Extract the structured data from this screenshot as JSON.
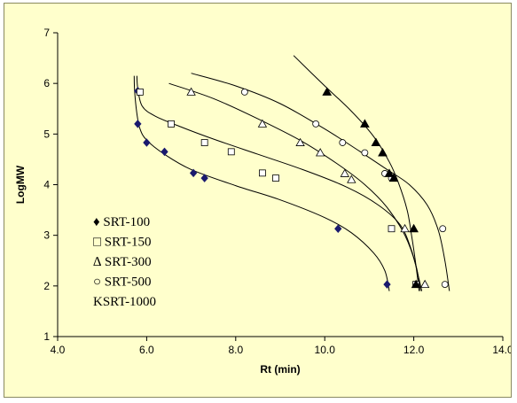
{
  "colors": {
    "page_background": "#ffffcc",
    "frame_border": "#8a8a60",
    "axis": "#000000",
    "curve": "#000000",
    "srt100_marker": "#1a1a6e"
  },
  "chart_data": {
    "type": "scatter",
    "xlabel": "Rt (min)",
    "ylabel": "LogMW",
    "xlim": [
      4.0,
      14.0
    ],
    "ylim": [
      1,
      7
    ],
    "xticks": [
      "4.0",
      "6.0",
      "8.0",
      "10.0",
      "12.0",
      "14.0"
    ],
    "yticks": [
      "1",
      "2",
      "3",
      "4",
      "5",
      "6",
      "7"
    ],
    "grid": false,
    "legend_position": "bottom-left",
    "series": [
      {
        "name": "SRT-100",
        "legend_label": "♦ SRT-100",
        "marker": "filled-diamond",
        "points": [
          [
            5.8,
            5.85
          ],
          [
            5.8,
            5.2
          ],
          [
            6.0,
            4.83
          ],
          [
            6.4,
            4.65
          ],
          [
            7.05,
            4.23
          ],
          [
            7.3,
            4.13
          ],
          [
            10.3,
            3.13
          ],
          [
            11.4,
            2.03
          ]
        ],
        "fit_curve": [
          [
            5.72,
            6.15
          ],
          [
            5.73,
            5.85
          ],
          [
            5.78,
            5.4
          ],
          [
            5.85,
            5.1
          ],
          [
            6.0,
            4.88
          ],
          [
            6.4,
            4.6
          ],
          [
            7.0,
            4.3
          ],
          [
            8.0,
            3.98
          ],
          [
            9.0,
            3.7
          ],
          [
            10.0,
            3.35
          ],
          [
            10.6,
            3.05
          ],
          [
            11.1,
            2.65
          ],
          [
            11.35,
            2.3
          ],
          [
            11.45,
            1.9
          ]
        ]
      },
      {
        "name": "SRT-150",
        "legend_label": "□ SRT-150",
        "marker": "open-square",
        "points": [
          [
            5.85,
            5.83
          ],
          [
            6.55,
            5.2
          ],
          [
            7.3,
            4.83
          ],
          [
            7.9,
            4.65
          ],
          [
            8.6,
            4.23
          ],
          [
            8.9,
            4.13
          ],
          [
            11.5,
            3.13
          ],
          [
            12.05,
            2.03
          ]
        ],
        "fit_curve": [
          [
            5.78,
            6.15
          ],
          [
            5.8,
            5.9
          ],
          [
            5.9,
            5.55
          ],
          [
            6.2,
            5.35
          ],
          [
            6.8,
            5.13
          ],
          [
            7.5,
            4.9
          ],
          [
            8.5,
            4.6
          ],
          [
            9.5,
            4.3
          ],
          [
            10.5,
            3.95
          ],
          [
            11.2,
            3.6
          ],
          [
            11.7,
            3.2
          ],
          [
            11.95,
            2.7
          ],
          [
            12.1,
            2.2
          ],
          [
            12.18,
            1.9
          ]
        ]
      },
      {
        "name": "SRT-300",
        "legend_label": "∆ SRT-300",
        "marker": "open-triangle",
        "points": [
          [
            7.0,
            5.83
          ],
          [
            8.6,
            5.2
          ],
          [
            9.45,
            4.83
          ],
          [
            9.9,
            4.63
          ],
          [
            10.45,
            4.22
          ],
          [
            10.6,
            4.1
          ],
          [
            11.8,
            3.13
          ],
          [
            12.25,
            2.03
          ]
        ],
        "fit_curve": [
          [
            6.5,
            6.0
          ],
          [
            7.5,
            5.7
          ],
          [
            8.5,
            5.3
          ],
          [
            9.5,
            4.85
          ],
          [
            10.3,
            4.4
          ],
          [
            10.9,
            4.0
          ],
          [
            11.4,
            3.55
          ],
          [
            11.8,
            3.0
          ],
          [
            12.05,
            2.4
          ],
          [
            12.15,
            1.9
          ]
        ]
      },
      {
        "name": "SRT-500",
        "legend_label": "○ SRT-500",
        "marker": "open-circle",
        "points": [
          [
            8.2,
            5.83
          ],
          [
            9.8,
            5.2
          ],
          [
            10.4,
            4.83
          ],
          [
            10.9,
            4.63
          ],
          [
            11.35,
            4.22
          ],
          [
            11.5,
            4.13
          ],
          [
            12.65,
            3.13
          ],
          [
            12.7,
            2.03
          ]
        ],
        "fit_curve": [
          [
            7.0,
            6.2
          ],
          [
            8.0,
            5.95
          ],
          [
            9.0,
            5.6
          ],
          [
            10.0,
            5.1
          ],
          [
            10.8,
            4.65
          ],
          [
            11.4,
            4.3
          ],
          [
            11.9,
            4.0
          ],
          [
            12.3,
            3.6
          ],
          [
            12.55,
            3.1
          ],
          [
            12.7,
            2.5
          ],
          [
            12.8,
            1.9
          ]
        ]
      },
      {
        "name": "SRT-1000",
        "legend_label": "KSRT-1000",
        "marker": "filled-triangle",
        "points": [
          [
            10.05,
            5.83
          ],
          [
            10.9,
            5.2
          ],
          [
            11.15,
            4.83
          ],
          [
            11.3,
            4.63
          ],
          [
            11.45,
            4.22
          ],
          [
            11.55,
            4.13
          ],
          [
            12.0,
            3.13
          ],
          [
            12.05,
            2.03
          ]
        ],
        "fit_curve": [
          [
            9.3,
            6.55
          ],
          [
            10.0,
            5.95
          ],
          [
            10.6,
            5.45
          ],
          [
            11.1,
            4.95
          ],
          [
            11.45,
            4.45
          ],
          [
            11.65,
            4.05
          ],
          [
            11.85,
            3.5
          ],
          [
            11.95,
            3.0
          ],
          [
            12.05,
            2.4
          ],
          [
            12.12,
            1.9
          ]
        ]
      }
    ]
  }
}
